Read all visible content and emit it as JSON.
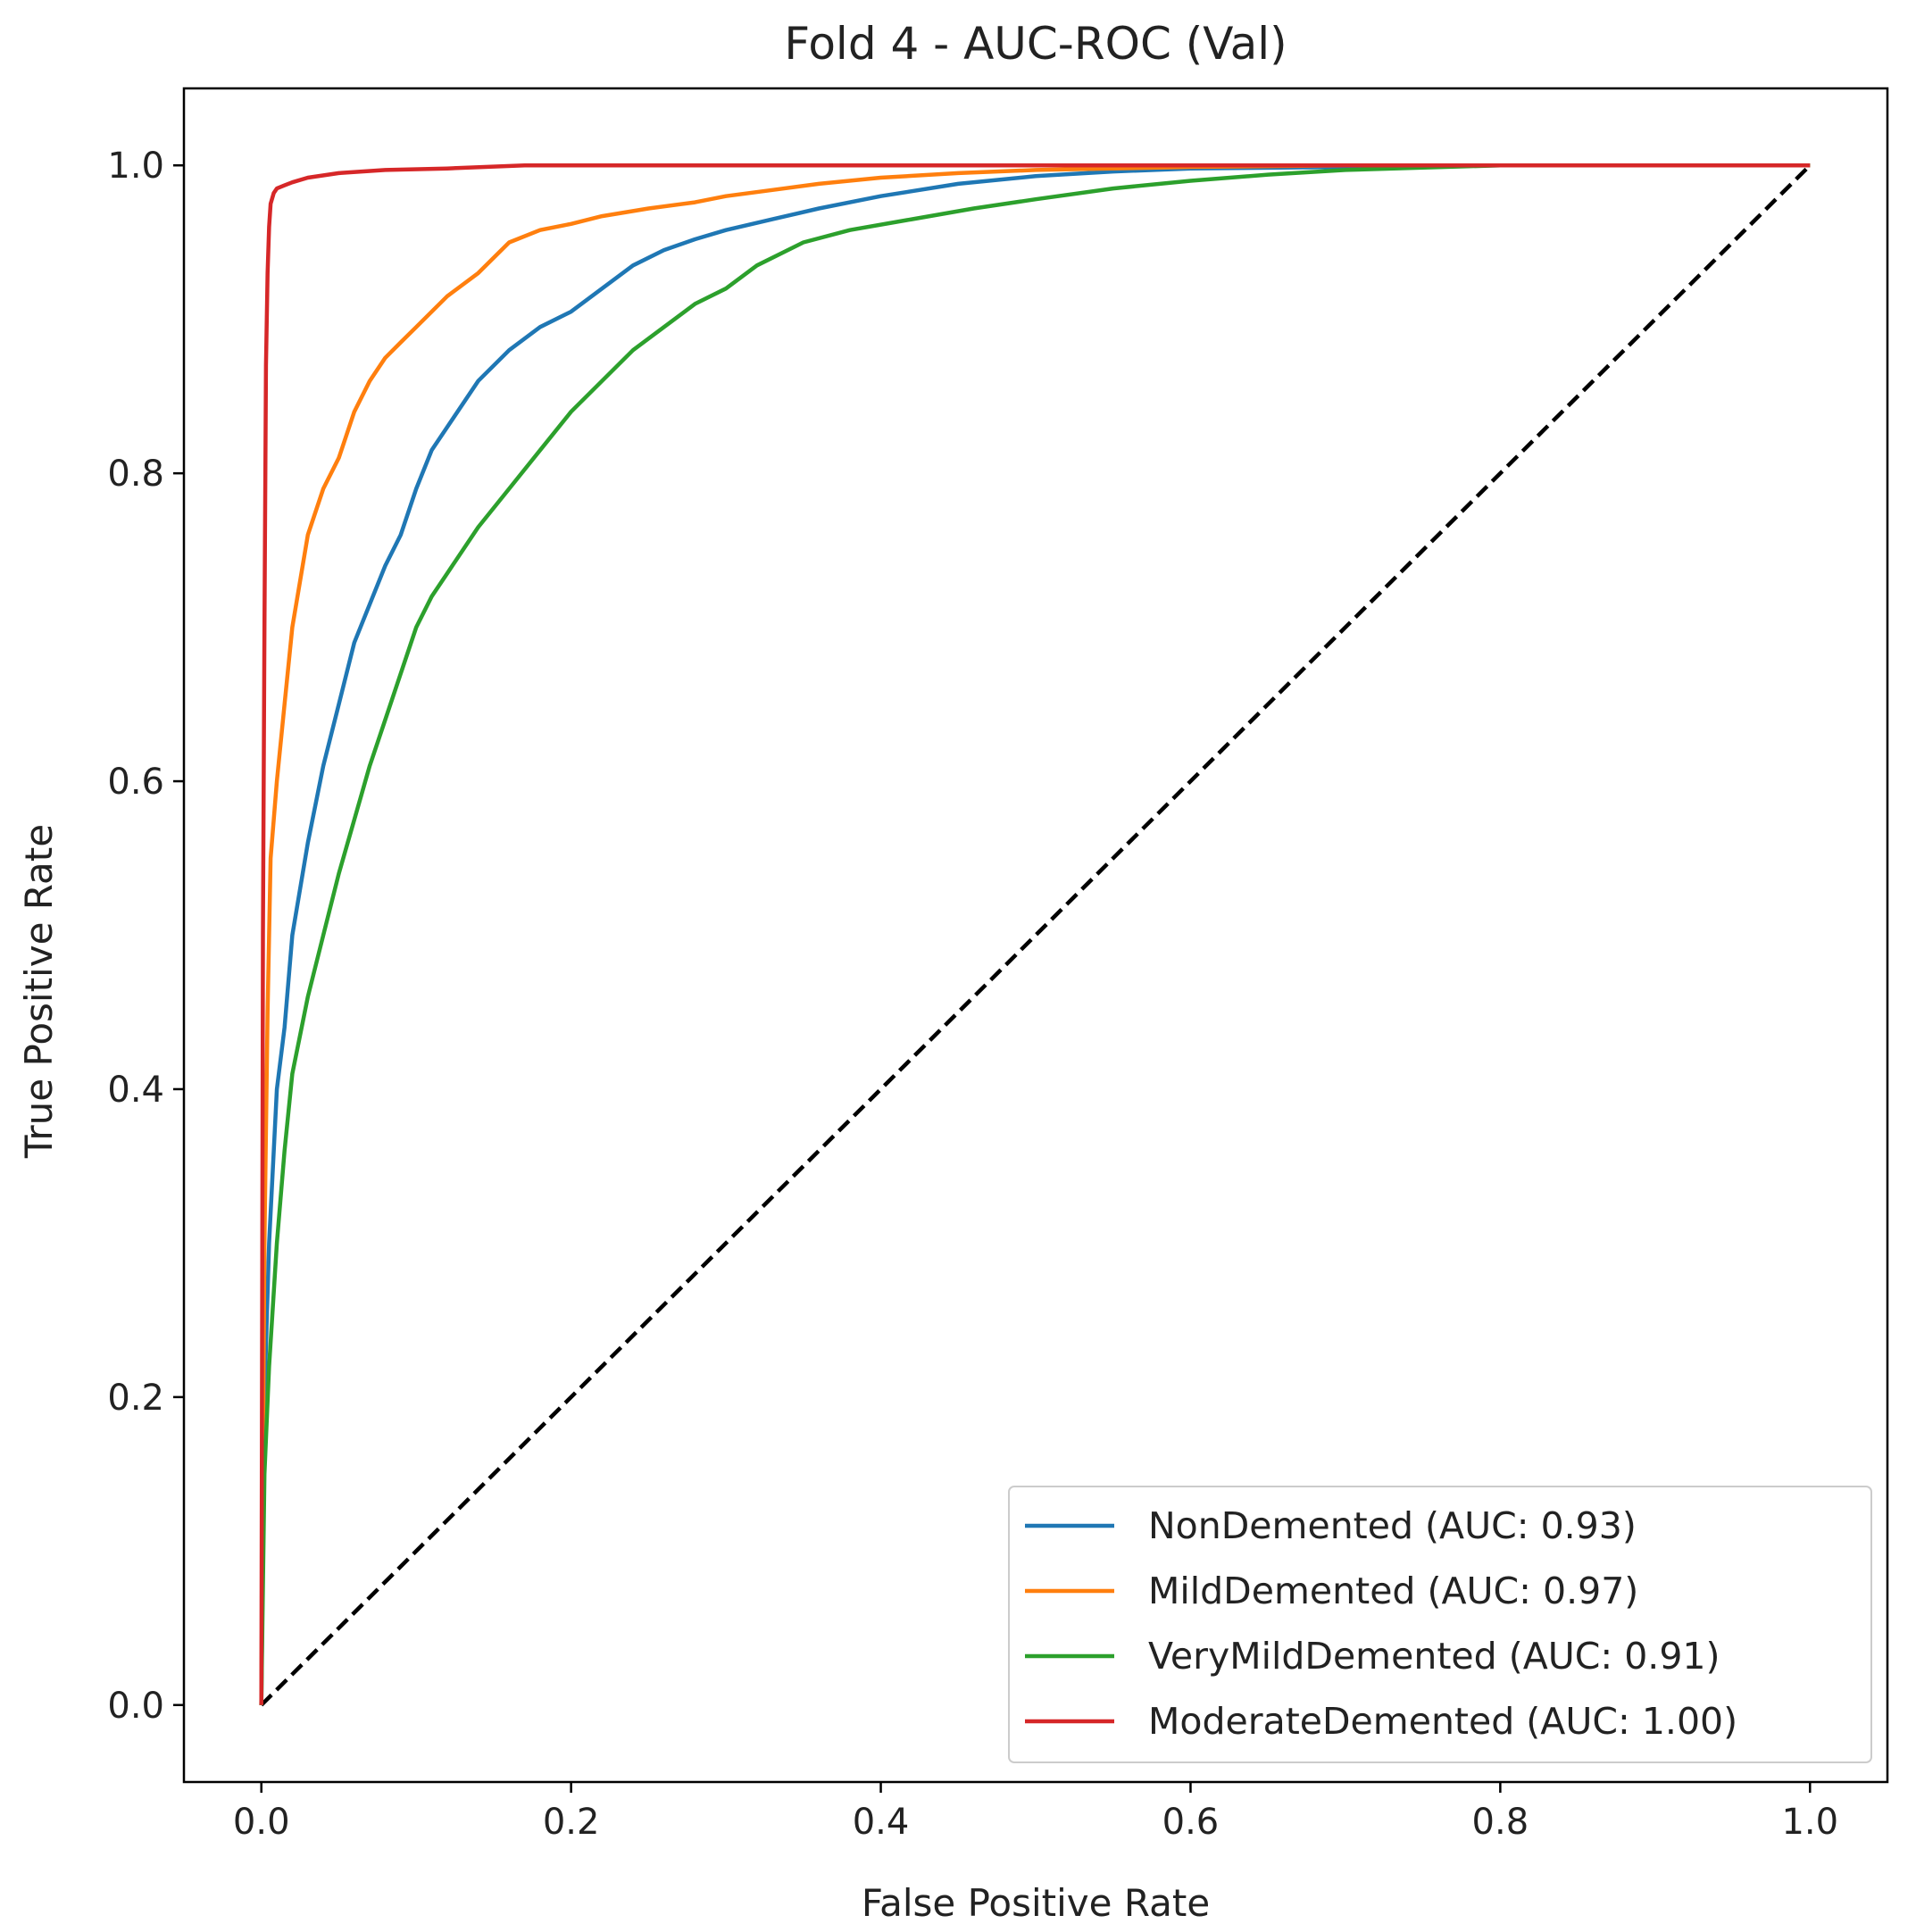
{
  "chart_data": {
    "type": "line",
    "title": "Fold 4 - AUC-ROC (Val)",
    "xlabel": "False Positive Rate",
    "ylabel": "True Positive Rate",
    "xlim": [
      -0.05,
      1.05
    ],
    "ylim": [
      -0.05,
      1.05
    ],
    "xticks": [
      0.0,
      0.2,
      0.4,
      0.6,
      0.8,
      1.0
    ],
    "yticks": [
      0.0,
      0.2,
      0.4,
      0.6,
      0.8,
      1.0
    ],
    "xtick_labels": [
      "0.0",
      "0.2",
      "0.4",
      "0.6",
      "0.8",
      "1.0"
    ],
    "ytick_labels": [
      "0.0",
      "0.2",
      "0.4",
      "0.6",
      "0.8",
      "1.0"
    ],
    "grid": false,
    "legend_position": "lower-right",
    "series": [
      {
        "name": "NonDemented",
        "label": "NonDemented (AUC: 0.93)",
        "auc": 0.93,
        "color": "#1f77b4",
        "x": [
          0.0,
          0.002,
          0.005,
          0.01,
          0.015,
          0.02,
          0.03,
          0.04,
          0.05,
          0.06,
          0.08,
          0.09,
          0.1,
          0.11,
          0.12,
          0.14,
          0.16,
          0.18,
          0.2,
          0.22,
          0.24,
          0.26,
          0.28,
          0.3,
          0.33,
          0.36,
          0.4,
          0.45,
          0.5,
          0.55,
          0.6,
          0.7,
          0.8,
          1.0
        ],
        "y": [
          0.0,
          0.2,
          0.3,
          0.4,
          0.44,
          0.5,
          0.56,
          0.61,
          0.65,
          0.69,
          0.74,
          0.76,
          0.79,
          0.815,
          0.83,
          0.86,
          0.88,
          0.895,
          0.905,
          0.92,
          0.935,
          0.945,
          0.952,
          0.958,
          0.965,
          0.972,
          0.98,
          0.988,
          0.993,
          0.996,
          0.998,
          0.999,
          1.0,
          1.0
        ]
      },
      {
        "name": "MildDemented",
        "label": "MildDemented (AUC: 0.97)",
        "auc": 0.97,
        "color": "#ff7f0e",
        "x": [
          0.0,
          0.002,
          0.004,
          0.006,
          0.01,
          0.015,
          0.02,
          0.03,
          0.04,
          0.05,
          0.06,
          0.07,
          0.08,
          0.09,
          0.1,
          0.12,
          0.14,
          0.16,
          0.18,
          0.2,
          0.22,
          0.25,
          0.28,
          0.3,
          0.33,
          0.36,
          0.4,
          0.45,
          0.5,
          0.6,
          0.7,
          0.8,
          1.0
        ],
        "y": [
          0.0,
          0.3,
          0.45,
          0.55,
          0.6,
          0.65,
          0.7,
          0.76,
          0.79,
          0.81,
          0.84,
          0.86,
          0.875,
          0.885,
          0.895,
          0.915,
          0.93,
          0.95,
          0.958,
          0.962,
          0.967,
          0.972,
          0.976,
          0.98,
          0.984,
          0.988,
          0.992,
          0.995,
          0.997,
          0.999,
          1.0,
          1.0,
          1.0
        ]
      },
      {
        "name": "VeryMildDemented",
        "label": "VeryMildDemented (AUC: 0.91)",
        "auc": 0.91,
        "color": "#2ca02c",
        "x": [
          0.0,
          0.002,
          0.005,
          0.01,
          0.015,
          0.02,
          0.03,
          0.04,
          0.05,
          0.06,
          0.07,
          0.08,
          0.1,
          0.11,
          0.12,
          0.14,
          0.16,
          0.18,
          0.2,
          0.22,
          0.24,
          0.26,
          0.28,
          0.3,
          0.32,
          0.35,
          0.38,
          0.42,
          0.46,
          0.5,
          0.55,
          0.6,
          0.65,
          0.7,
          0.8,
          1.0
        ],
        "y": [
          0.0,
          0.15,
          0.22,
          0.3,
          0.36,
          0.41,
          0.46,
          0.5,
          0.54,
          0.575,
          0.61,
          0.64,
          0.7,
          0.72,
          0.735,
          0.765,
          0.79,
          0.815,
          0.84,
          0.86,
          0.88,
          0.895,
          0.91,
          0.92,
          0.935,
          0.95,
          0.958,
          0.965,
          0.972,
          0.978,
          0.985,
          0.99,
          0.994,
          0.997,
          1.0,
          1.0
        ]
      },
      {
        "name": "ModerateDemented",
        "label": "ModerateDemented (AUC: 1.00)",
        "auc": 1.0,
        "color": "#d62728",
        "x": [
          0.0,
          0.001,
          0.002,
          0.003,
          0.004,
          0.005,
          0.006,
          0.008,
          0.01,
          0.015,
          0.02,
          0.03,
          0.05,
          0.08,
          0.12,
          0.17,
          0.3,
          0.5,
          1.0
        ],
        "y": [
          0.0,
          0.5,
          0.7,
          0.87,
          0.93,
          0.96,
          0.975,
          0.982,
          0.985,
          0.987,
          0.989,
          0.992,
          0.995,
          0.997,
          0.998,
          1.0,
          1.0,
          1.0,
          1.0
        ]
      }
    ],
    "reference_line": {
      "name": "chance",
      "x": [
        0.0,
        1.0
      ],
      "y": [
        0.0,
        1.0
      ],
      "color": "#000000",
      "style": "dashed"
    }
  }
}
